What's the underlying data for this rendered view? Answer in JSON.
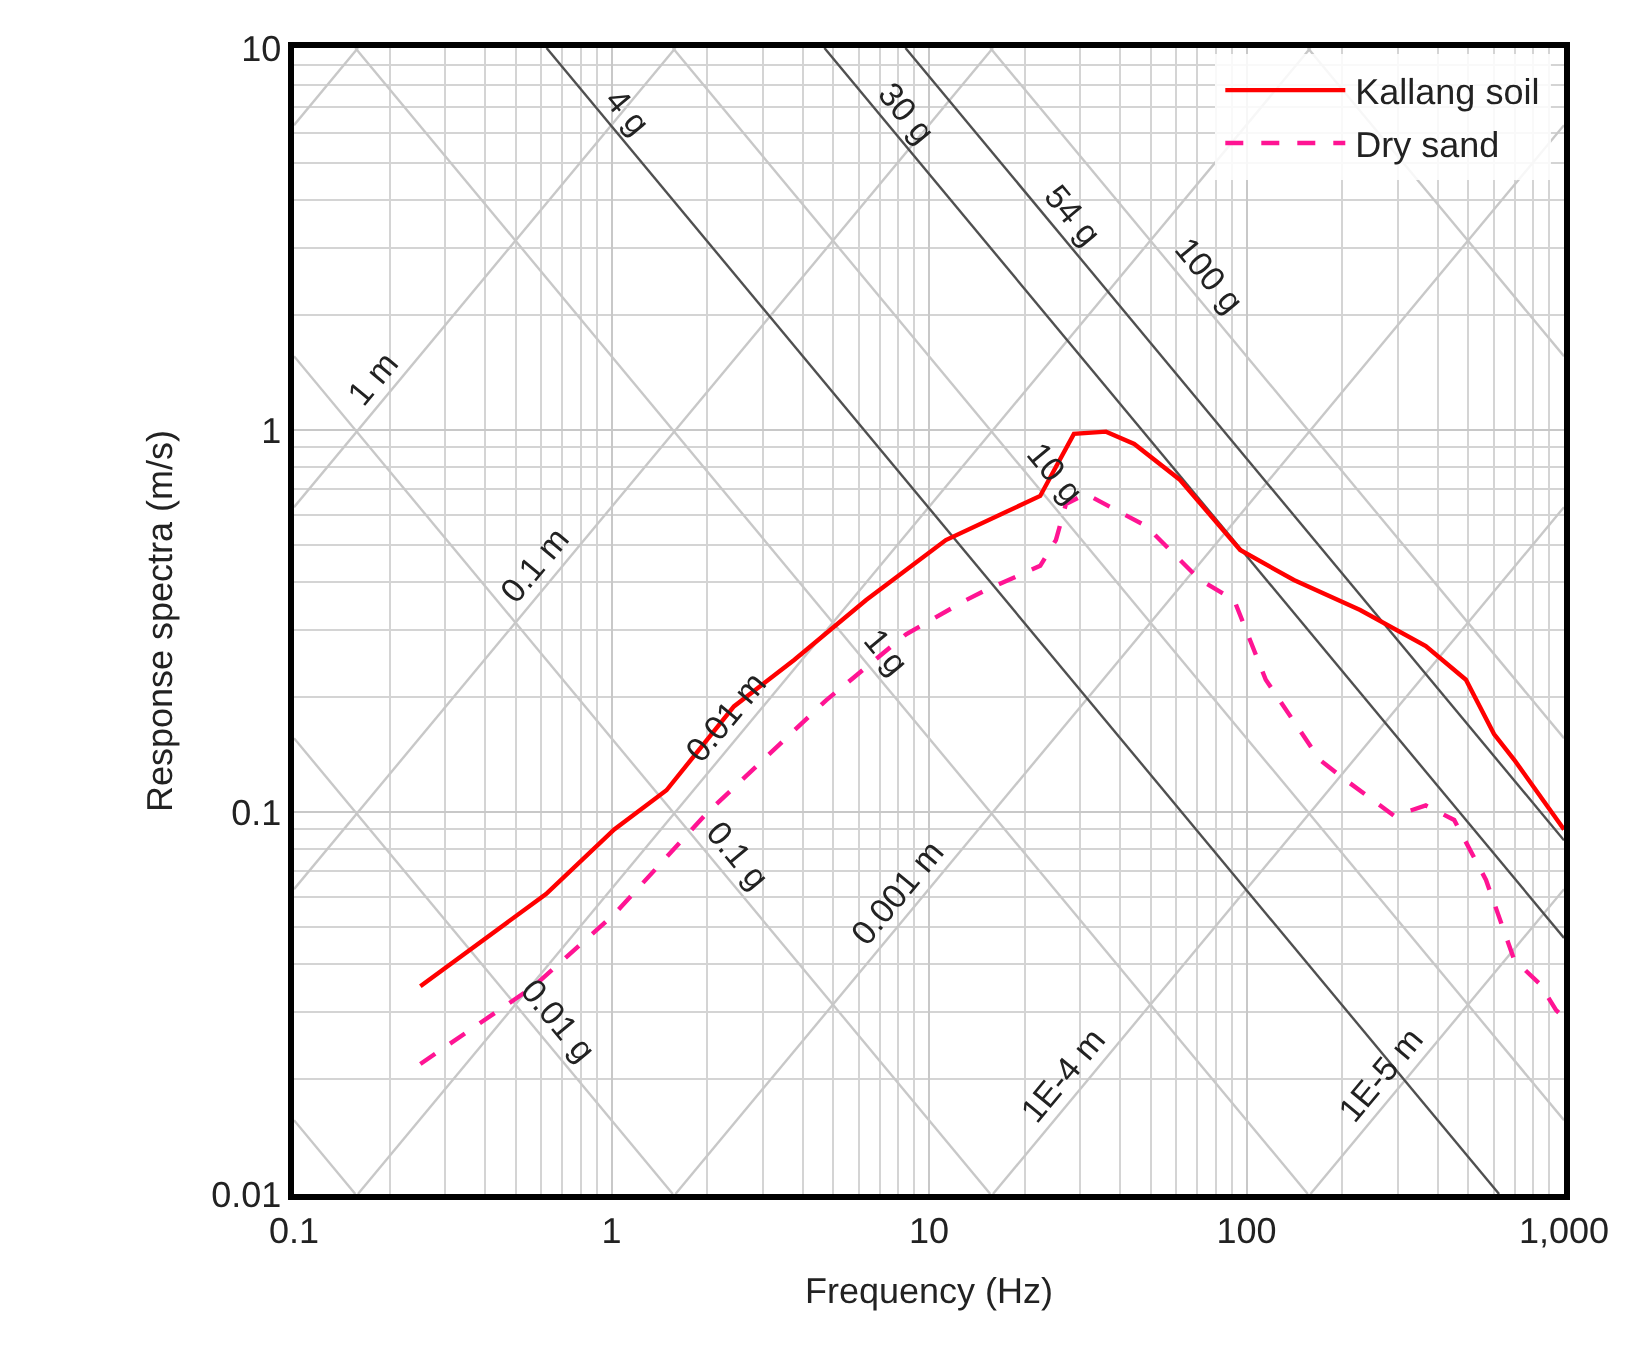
{
  "chart_data": {
    "type": "line",
    "xlabel": "Frequency (Hz)",
    "ylabel": "Response spectra (m/s)",
    "log": "xy",
    "grid": true,
    "legend": "top right",
    "xlim": [
      0.1,
      1000
    ],
    "ylim": [
      0.01,
      10
    ],
    "xticks": [
      0.1,
      1,
      10,
      100,
      {
        "value": 1000,
        "label": "1,000"
      }
    ],
    "yticks": [
      0.01,
      0.1,
      1,
      10
    ],
    "series": [
      {
        "color": "#c8c8c8",
        "x": [
          0.1,
          0.159
        ],
        "values": [
          6.28,
          10
        ]
      },
      {
        "color": "#c8c8c8",
        "x": [
          0.1,
          1.59
        ],
        "values": [
          0.628,
          10
        ]
      },
      {
        "color": "#c8c8c8",
        "x": [
          0.1,
          15.9
        ],
        "values": [
          0.0628,
          10
        ]
      },
      {
        "color": "#c8c8c8",
        "x": [
          0.159,
          159
        ],
        "values": [
          0.01,
          10
        ]
      },
      {
        "color": "#c8c8c8",
        "x": [
          1.59,
          1000
        ],
        "values": [
          0.01,
          6.28
        ]
      },
      {
        "color": "#c8c8c8",
        "x": [
          15.9,
          1000
        ],
        "values": [
          0.01,
          0.628
        ]
      },
      {
        "color": "#c8c8c8",
        "x": [
          159,
          1000
        ],
        "values": [
          0.01,
          0.0628
        ]
      },
      {
        "color": "#c8c8c8",
        "x": [
          0.1,
          0.156
        ],
        "values": [
          0.0156,
          0.01
        ]
      },
      {
        "color": "#c8c8c8",
        "x": [
          0.1,
          1.56
        ],
        "values": [
          0.156,
          0.01
        ]
      },
      {
        "color": "#c8c8c8",
        "x": [
          0.1,
          15.6
        ],
        "values": [
          1.56,
          0.01
        ]
      },
      {
        "color": "#c8c8c8",
        "x": [
          0.156,
          156
        ],
        "values": [
          10,
          0.01
        ]
      },
      {
        "color": "#c8c8c8",
        "x": [
          1.56,
          1000
        ],
        "values": [
          10,
          0.0156
        ]
      },
      {
        "color": "#c8c8c8",
        "x": [
          15.6,
          1000
        ],
        "values": [
          10,
          0.156
        ]
      },
      {
        "color": "#c8c8c8",
        "x": [
          156,
          1000
        ],
        "values": [
          10,
          1.56
        ]
      },
      {
        "color": "#505050",
        "x": [
          0.6245,
          624.5
        ],
        "values": [
          10,
          0.01
        ]
      },
      {
        "color": "#505050",
        "x": [
          4.684,
          1000
        ],
        "values": [
          10,
          0.0468
        ]
      },
      {
        "color": "#505050",
        "x": [
          8.431,
          1000
        ],
        "values": [
          10,
          0.0843
        ]
      },
      {
        "name": "Kallang soil",
        "color": "#ff0000",
        "line_style": "solid",
        "x": [
          0.25,
          0.622,
          1.02,
          1.49,
          2.43,
          3.76,
          6.34,
          11.3,
          22.4,
          24.8,
          28.6,
          36.1,
          44.3,
          61.8,
          95.5,
          141,
          228,
          367,
          491,
          602,
          697,
          1000
        ],
        "values": [
          0.035,
          0.061,
          0.09,
          0.114,
          0.189,
          0.25,
          0.359,
          0.515,
          0.672,
          0.786,
          0.977,
          0.99,
          0.919,
          0.74,
          0.485,
          0.405,
          0.338,
          0.272,
          0.222,
          0.16,
          0.137,
          0.09
        ]
      },
      {
        "name": "Dry sand",
        "color": "#ff1493",
        "line_style": "dashed",
        "x": [
          0.25,
          0.57,
          1.02,
          1.99,
          4.74,
          8.47,
          13.1,
          15.1,
          22.4,
          25.1,
          27.0,
          31.2,
          48.2,
          71.4,
          91.4,
          115,
          170,
          206,
          292,
          367,
          451,
          568,
          697,
          839,
          944,
          1000
        ],
        "values": [
          0.0219,
          0.035,
          0.054,
          0.099,
          0.196,
          0.292,
          0.359,
          0.381,
          0.441,
          0.515,
          0.64,
          0.68,
          0.561,
          0.405,
          0.359,
          0.222,
          0.137,
          0.121,
          0.0977,
          0.104,
          0.0953,
          0.0664,
          0.041,
          0.0355,
          0.0303,
          0.029
        ]
      }
    ],
    "annotations": [
      {
        "text": "4 g",
        "x": 1.0,
        "y": 6.245
      },
      {
        "text": "30 g",
        "x": 7.5,
        "y": 6.245
      },
      {
        "text": "54 g",
        "x": 25,
        "y": 3.37
      },
      {
        "text": "100 g",
        "x": 67,
        "y": 2.33
      },
      {
        "text": "1 m",
        "x": 0.2,
        "y": 1.257
      },
      {
        "text": "0.1 m",
        "x": 0.65,
        "y": 0.408
      },
      {
        "text": "0.01 m",
        "x": 2.6,
        "y": 0.163
      },
      {
        "text": "0.001 m",
        "x": 9,
        "y": 0.0565
      },
      {
        "text": "1E-4 m",
        "x": 30,
        "y": 0.01885
      },
      {
        "text": "1E-5 m",
        "x": 300,
        "y": 0.01885
      },
      {
        "text": "0.01 g",
        "x": 0.6,
        "y": 0.026
      },
      {
        "text": "0.1 g",
        "x": 2.2,
        "y": 0.071
      },
      {
        "text": "1 g",
        "x": 6.5,
        "y": 0.24
      },
      {
        "text": "10 g",
        "x": 22,
        "y": 0.71
      }
    ]
  }
}
